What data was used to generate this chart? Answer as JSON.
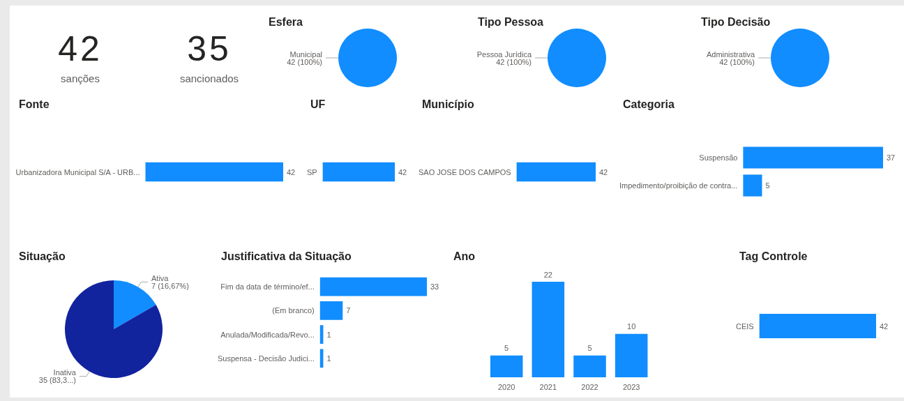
{
  "chart_data": [
    {
      "type": "other",
      "title": "42",
      "subtitle": "sanções"
    },
    {
      "type": "other",
      "title": "35",
      "subtitle": "sancionados"
    },
    {
      "type": "pie",
      "title": "Esfera",
      "categories": [
        "Municipal"
      ],
      "values": [
        100
      ],
      "colors": [
        "#118dff"
      ],
      "value_labels": [
        "42 (100%)"
      ]
    },
    {
      "type": "pie",
      "title": "Tipo Pessoa",
      "categories": [
        "Pessoa Jurídica"
      ],
      "values": [
        100
      ],
      "colors": [
        "#118dff"
      ],
      "value_labels": [
        "42 (100%)"
      ]
    },
    {
      "type": "pie",
      "title": "Tipo Decisão",
      "categories": [
        "Administrativa"
      ],
      "values": [
        100
      ],
      "colors": [
        "#118dff"
      ],
      "value_labels": [
        "42 (100%)"
      ]
    },
    {
      "type": "bar",
      "title": "Fonte",
      "orientation": "horizontal",
      "categories": [
        "Urbanizadora Municipal S/A - URB..."
      ],
      "values": [
        42
      ],
      "color": "#118dff",
      "data_labels": true
    },
    {
      "type": "bar",
      "title": "UF",
      "orientation": "horizontal",
      "categories": [
        "SP"
      ],
      "values": [
        42
      ],
      "color": "#118dff",
      "data_labels": true
    },
    {
      "type": "bar",
      "title": "Município",
      "orientation": "horizontal",
      "categories": [
        "SAO JOSE DOS CAMPOS"
      ],
      "values": [
        42
      ],
      "color": "#118dff",
      "data_labels": true
    },
    {
      "type": "bar",
      "title": "Categoria",
      "orientation": "horizontal",
      "categories": [
        "Suspensão",
        "Impedimento/proibição de contra..."
      ],
      "values": [
        37,
        5
      ],
      "color": "#118dff",
      "data_labels": true
    },
    {
      "type": "pie",
      "title": "Situação",
      "categories": [
        "Ativa",
        "Inativa"
      ],
      "values": [
        7,
        35
      ],
      "colors": [
        "#118dff",
        "#12239e"
      ],
      "value_labels": [
        "7 (16,67%)",
        "35 (83,3...)"
      ]
    },
    {
      "type": "bar",
      "title": "Justificativa da Situação",
      "orientation": "horizontal",
      "categories": [
        "Fim da data de término/ef...",
        "(Em branco)",
        "Anulada/Modificada/Revo...",
        "Suspensa - Decisão Judici..."
      ],
      "values": [
        33,
        7,
        1,
        1
      ],
      "color": "#118dff",
      "data_labels": true
    },
    {
      "type": "bar",
      "title": "Ano",
      "categories": [
        "2020",
        "2021",
        "2022",
        "2023"
      ],
      "values": [
        5,
        22,
        5,
        10
      ],
      "color": "#118dff",
      "data_labels": true
    },
    {
      "type": "bar",
      "title": "Tag Controle",
      "orientation": "horizontal",
      "categories": [
        "CEIS"
      ],
      "values": [
        42
      ],
      "color": "#118dff",
      "data_labels": true
    }
  ]
}
